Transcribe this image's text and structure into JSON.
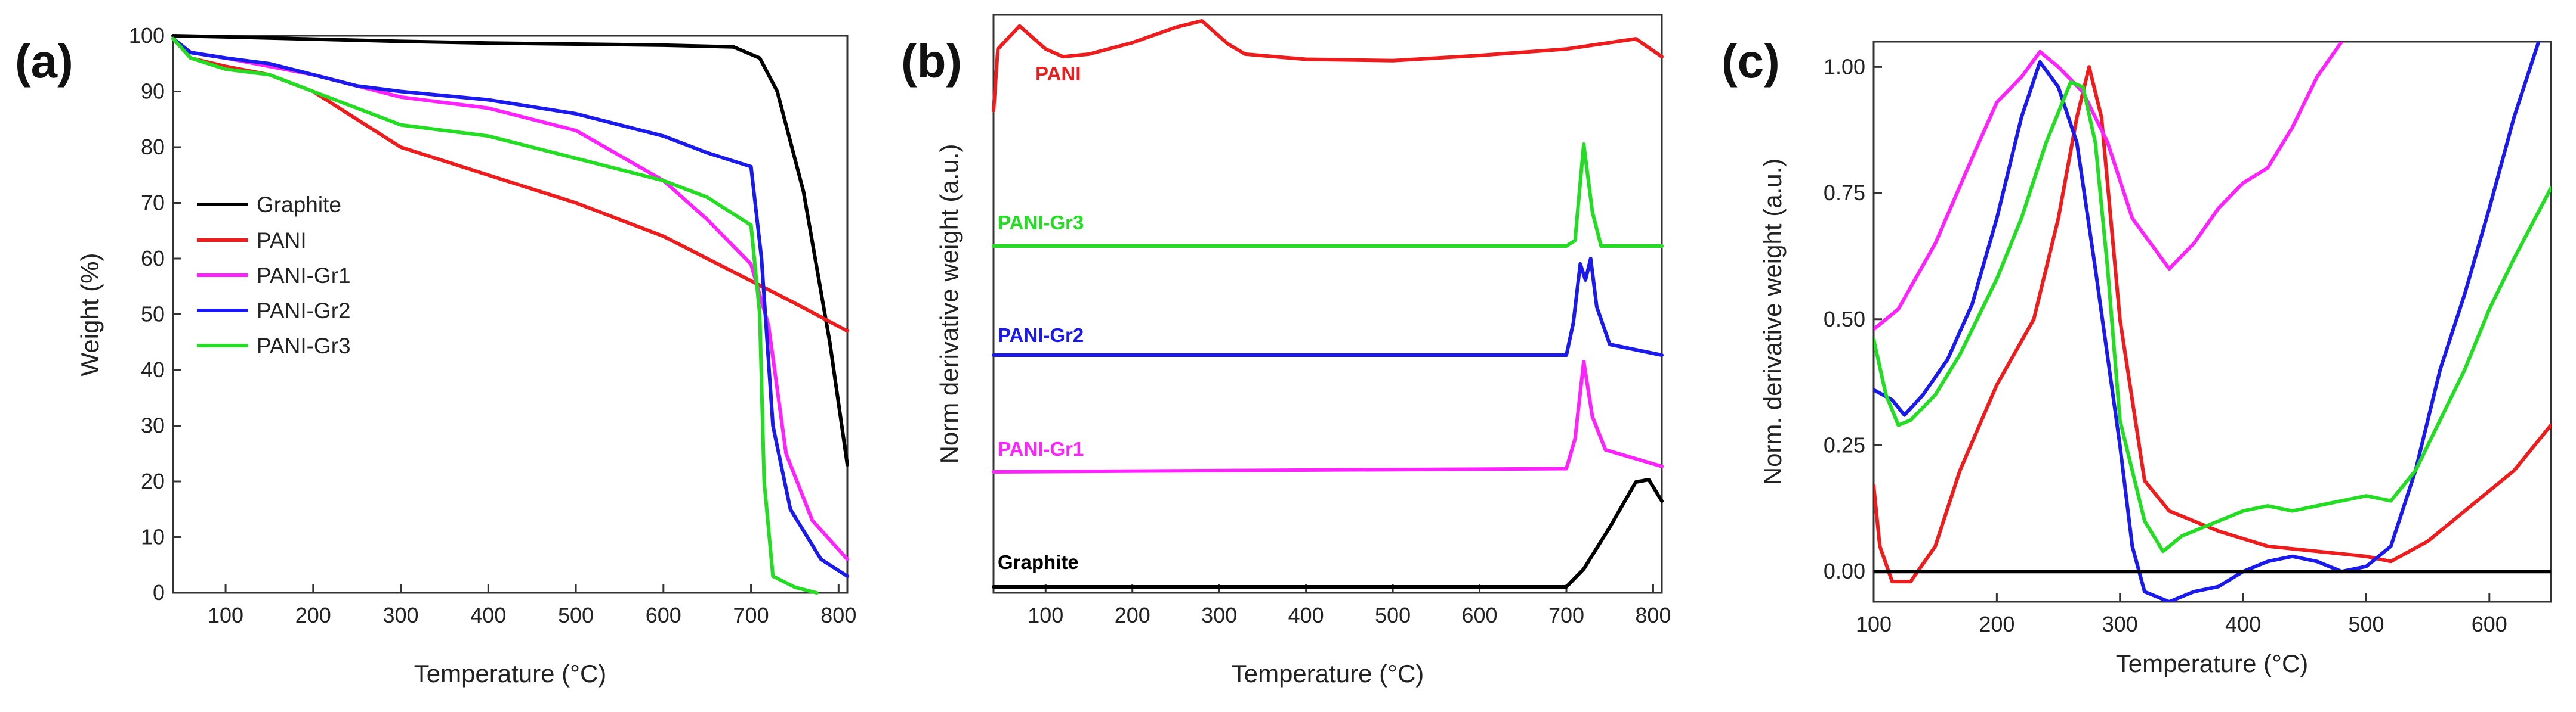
{
  "panels": [
    {
      "letter": "(a)",
      "xlabel": "Temperature (°C)",
      "ylabel": "Weight (%)",
      "xlim": [
        40,
        810
      ],
      "ylim": [
        0,
        100
      ],
      "xticks": [
        100,
        200,
        300,
        400,
        500,
        600,
        700,
        800
      ],
      "yticks": [
        0,
        10,
        20,
        30,
        40,
        50,
        60,
        70,
        80,
        90,
        100
      ],
      "legend": [
        "Graphite",
        "PANI",
        "PANI-Gr1",
        "PANI-Gr2",
        "PANI-Gr3"
      ],
      "legend_position": "center-left"
    },
    {
      "letter": "(b)",
      "xlabel": "Temperature (°C)",
      "ylabel": "Norm derivative weight (a.u.)",
      "xlim": [
        40,
        810
      ],
      "xticks": [
        100,
        200,
        300,
        400,
        500,
        600,
        700,
        800
      ],
      "curve_labels": [
        "PANI",
        "PANI-Gr3",
        "PANI-Gr2",
        "PANI-Gr1",
        "Graphite"
      ]
    },
    {
      "letter": "(c)",
      "xlabel": "Temperature (°C)",
      "ylabel": "Norm. derivative weight (a.u.)",
      "xlim": [
        100,
        650
      ],
      "ylim": [
        -0.06,
        1.05
      ],
      "xticks": [
        100,
        200,
        300,
        400,
        500,
        600
      ],
      "yticks": [
        "0.00",
        "0.25",
        "0.50",
        "0.75",
        "1.00"
      ]
    }
  ],
  "colors": {
    "Graphite": "#000000",
    "PANI": "#ee1c1c",
    "PANI-Gr1": "#ff22ff",
    "PANI-Gr2": "#1a1aee",
    "PANI-Gr3": "#22dd22"
  },
  "chart_data": [
    {
      "type": "line",
      "title": "(a)",
      "xlabel": "Temperature (°C)",
      "ylabel": "Weight (%)",
      "xlim": [
        40,
        810
      ],
      "ylim": [
        0,
        100
      ],
      "series": [
        {
          "name": "Graphite",
          "x": [
            40,
            100,
            200,
            300,
            400,
            500,
            600,
            680,
            710,
            730,
            760,
            790,
            810
          ],
          "y": [
            100,
            99.8,
            99.4,
            99.0,
            98.7,
            98.5,
            98.3,
            98.0,
            96,
            90,
            72,
            45,
            23
          ]
        },
        {
          "name": "PANI",
          "x": [
            40,
            60,
            100,
            150,
            200,
            250,
            300,
            400,
            500,
            600,
            700,
            750,
            810
          ],
          "y": [
            99.5,
            96,
            94.5,
            93,
            90,
            85,
            80,
            75,
            70,
            64,
            56,
            52,
            47
          ]
        },
        {
          "name": "PANI-Gr1",
          "x": [
            40,
            60,
            100,
            150,
            200,
            250,
            300,
            400,
            500,
            600,
            650,
            700,
            720,
            740,
            770,
            810
          ],
          "y": [
            99.5,
            97,
            96,
            94.5,
            93,
            91,
            89,
            87,
            83,
            74,
            67,
            59,
            48,
            25,
            13,
            6
          ]
        },
        {
          "name": "PANI-Gr2",
          "x": [
            40,
            60,
            100,
            150,
            200,
            250,
            300,
            400,
            500,
            600,
            650,
            700,
            712,
            725,
            745,
            780,
            810
          ],
          "y": [
            99.5,
            97,
            96,
            95,
            93,
            91,
            90,
            88.5,
            86,
            82,
            79,
            76.5,
            60,
            30,
            15,
            6,
            3
          ]
        },
        {
          "name": "PANI-Gr3",
          "x": [
            40,
            60,
            100,
            150,
            200,
            250,
            300,
            400,
            500,
            600,
            650,
            700,
            710,
            715,
            725,
            750,
            775
          ],
          "y": [
            99.5,
            96,
            94,
            93,
            90,
            87,
            84,
            82,
            78,
            74,
            71,
            66,
            50,
            20,
            3,
            1,
            0
          ]
        }
      ]
    },
    {
      "type": "line",
      "title": "(b)",
      "xlabel": "Temperature (°C)",
      "ylabel": "Norm derivative weight (a.u.)",
      "xlim": [
        40,
        810
      ],
      "series": [
        {
          "name": "PANI",
          "x": [
            40,
            45,
            70,
            100,
            120,
            150,
            200,
            250,
            280,
            310,
            330,
            400,
            500,
            600,
            700,
            780,
            810
          ],
          "y": [
            0.3,
            0.78,
            0.96,
            0.78,
            0.72,
            0.74,
            0.83,
            0.95,
            1.0,
            0.82,
            0.74,
            0.7,
            0.69,
            0.73,
            0.78,
            0.86,
            0.72
          ]
        },
        {
          "name": "PANI-Gr3",
          "x": [
            40,
            700,
            710,
            720,
            730,
            740,
            810
          ],
          "y": [
            0.0,
            0.0,
            0.05,
            0.9,
            0.3,
            0.0,
            0.0
          ]
        },
        {
          "name": "PANI-Gr2",
          "x": [
            40,
            700,
            708,
            716,
            722,
            728,
            735,
            750,
            810
          ],
          "y": [
            0.0,
            0.0,
            0.3,
            0.85,
            0.7,
            0.9,
            0.45,
            0.1,
            0.0
          ]
        },
        {
          "name": "PANI-Gr1",
          "x": [
            40,
            700,
            710,
            720,
            730,
            745,
            810
          ],
          "y": [
            0.0,
            0.03,
            0.3,
            1.0,
            0.5,
            0.2,
            0.05
          ]
        },
        {
          "name": "Graphite",
          "x": [
            40,
            700,
            720,
            750,
            780,
            795,
            810
          ],
          "y": [
            0.0,
            0.0,
            0.15,
            0.5,
            0.88,
            0.9,
            0.72
          ]
        }
      ]
    },
    {
      "type": "line",
      "title": "(c)",
      "xlabel": "Temperature (°C)",
      "ylabel": "Norm. derivative weight (a.u.)",
      "xlim": [
        100,
        650
      ],
      "ylim": [
        -0.06,
        1.05
      ],
      "series": [
        {
          "name": "PANI",
          "x": [
            100,
            105,
            115,
            130,
            150,
            170,
            200,
            230,
            250,
            265,
            275,
            285,
            300,
            320,
            340,
            380,
            420,
            460,
            500,
            520,
            550,
            580,
            620,
            650
          ],
          "y": [
            0.17,
            0.05,
            -0.02,
            -0.02,
            0.05,
            0.2,
            0.37,
            0.5,
            0.7,
            0.9,
            1.0,
            0.9,
            0.5,
            0.18,
            0.12,
            0.08,
            0.05,
            0.04,
            0.03,
            0.02,
            0.06,
            0.12,
            0.2,
            0.29
          ]
        },
        {
          "name": "PANI-Gr1",
          "x": [
            100,
            120,
            150,
            180,
            200,
            220,
            235,
            250,
            270,
            290,
            310,
            340,
            360,
            380,
            400,
            420,
            440,
            460,
            480
          ],
          "y": [
            0.48,
            0.52,
            0.65,
            0.82,
            0.93,
            0.98,
            1.03,
            1.0,
            0.95,
            0.85,
            0.7,
            0.6,
            0.65,
            0.72,
            0.77,
            0.8,
            0.88,
            0.98,
            1.05
          ]
        },
        {
          "name": "PANI-Gr2",
          "x": [
            100,
            115,
            125,
            140,
            160,
            180,
            200,
            220,
            235,
            250,
            265,
            280,
            300,
            310,
            320,
            340,
            360,
            380,
            400,
            420,
            440,
            460,
            480,
            500,
            520,
            540,
            560,
            580,
            600,
            620,
            640
          ],
          "y": [
            0.36,
            0.34,
            0.31,
            0.35,
            0.42,
            0.53,
            0.7,
            0.9,
            1.01,
            0.96,
            0.85,
            0.6,
            0.25,
            0.05,
            -0.04,
            -0.06,
            -0.04,
            -0.03,
            0.0,
            0.02,
            0.03,
            0.02,
            0.0,
            0.01,
            0.05,
            0.2,
            0.4,
            0.55,
            0.72,
            0.9,
            1.05
          ]
        },
        {
          "name": "PANI-Gr3",
          "x": [
            100,
            110,
            120,
            130,
            150,
            170,
            200,
            220,
            240,
            260,
            270,
            280,
            290,
            300,
            320,
            335,
            350,
            380,
            400,
            420,
            440,
            460,
            480,
            500,
            520,
            540,
            560,
            580,
            600,
            620,
            650
          ],
          "y": [
            0.46,
            0.35,
            0.29,
            0.3,
            0.35,
            0.43,
            0.58,
            0.7,
            0.85,
            0.97,
            0.96,
            0.85,
            0.6,
            0.3,
            0.1,
            0.04,
            0.07,
            0.1,
            0.12,
            0.13,
            0.12,
            0.13,
            0.14,
            0.15,
            0.14,
            0.2,
            0.3,
            0.4,
            0.52,
            0.62,
            0.76
          ]
        },
        {
          "name": "Graphite",
          "x": [
            100,
            150,
            200,
            250,
            300,
            350,
            400,
            450,
            500,
            550,
            600,
            650
          ],
          "y": [
            0.0,
            0.0,
            0.0,
            0.0,
            0.0,
            0.0,
            0.0,
            0.0,
            0.0,
            0.0,
            0.0,
            0.0
          ]
        }
      ]
    }
  ]
}
